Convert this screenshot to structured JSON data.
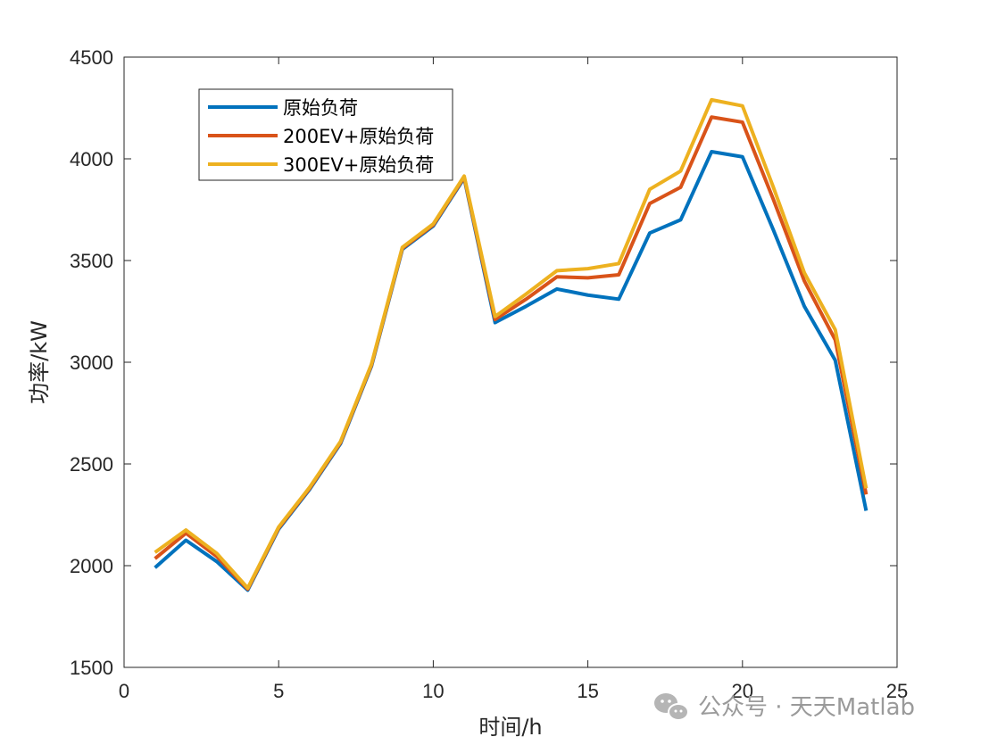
{
  "chart_data": {
    "type": "line",
    "title": "",
    "xlabel": "时间/h",
    "ylabel": "功率/kW",
    "xlim": [
      0,
      25
    ],
    "ylim": [
      1500,
      4500
    ],
    "xticks": [
      0,
      5,
      10,
      15,
      20,
      25
    ],
    "yticks": [
      1500,
      2000,
      2500,
      3000,
      3500,
      4000,
      4500
    ],
    "grid": false,
    "legend_position": "top-left",
    "x": [
      1,
      2,
      3,
      4,
      5,
      6,
      7,
      8,
      9,
      10,
      11,
      12,
      13,
      14,
      15,
      16,
      17,
      18,
      19,
      20,
      21,
      22,
      23,
      24
    ],
    "series": [
      {
        "name": "原始负荷",
        "color": "#0072BD",
        "values": [
          1990,
          2125,
          2020,
          1880,
          2180,
          2375,
          2600,
          2980,
          3555,
          3670,
          3905,
          3195,
          3275,
          3360,
          3330,
          3310,
          3635,
          3700,
          4035,
          4010,
          3650,
          3275,
          3010,
          2270
        ]
      },
      {
        "name": "200EV+原始负荷",
        "color": "#D95319",
        "values": [
          2035,
          2160,
          2045,
          1885,
          2185,
          2380,
          2605,
          2985,
          3560,
          3675,
          3910,
          3210,
          3310,
          3420,
          3415,
          3430,
          3780,
          3860,
          4205,
          4180,
          3800,
          3400,
          3110,
          2350
        ]
      },
      {
        "name": "300EV+原始负荷",
        "color": "#EDB120",
        "values": [
          2065,
          2175,
          2060,
          1890,
          2190,
          2385,
          2610,
          2990,
          3565,
          3680,
          3915,
          3225,
          3335,
          3450,
          3460,
          3485,
          3850,
          3940,
          4290,
          4260,
          3860,
          3440,
          3160,
          2380
        ]
      }
    ]
  },
  "watermark": {
    "icon": "wechat-icon",
    "text": "公众号 · 天天Matlab"
  }
}
